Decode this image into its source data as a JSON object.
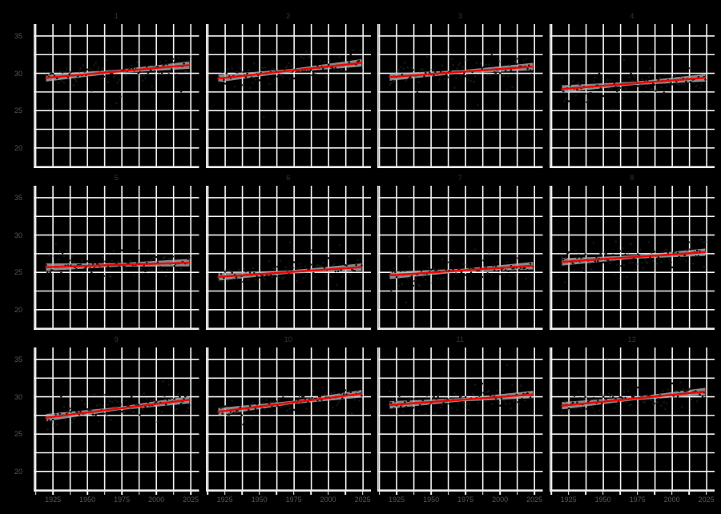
{
  "window": {
    "background_color": "#000000"
  },
  "chart_data": {
    "type": "scatter",
    "title": "",
    "layout": {
      "rows": 3,
      "cols": 4,
      "shared_axes": true,
      "grid": "on",
      "legend": "none"
    },
    "x": {
      "label": "",
      "tick_labels": [
        "1925",
        "1950",
        "1975",
        "2000",
        "2025"
      ],
      "ticks": [
        1925,
        1950,
        1975,
        2000,
        2025
      ],
      "gridline_step": 12.5,
      "gridline_start": 1912.5,
      "gridline_end": 2025,
      "lim": [
        1911,
        2031
      ]
    },
    "y": {
      "label": "",
      "tick_labels": [
        "20",
        "25",
        "30",
        "35"
      ],
      "ticks": [
        20,
        25,
        30,
        35
      ],
      "gridline_step": 2.5,
      "gridline_start": 17.5,
      "gridline_end": 35,
      "lim": [
        17.3,
        36.6
      ]
    },
    "facets": [
      {
        "title": "1",
        "regression": {
          "x": [
            1920,
            2024
          ],
          "y": [
            29.4,
            31.1
          ]
        },
        "ci_halfwidth": {
          "ends": 0.5,
          "middle": 0.22
        },
        "scatter": {
          "x_range": [
            1920,
            2024
          ],
          "points": 105,
          "spread_sd": 0.85,
          "outlier_rate": 0.06,
          "outlier_sd": 1.8,
          "seed": 1344
        }
      },
      {
        "title": "2",
        "regression": {
          "x": [
            1920,
            2024
          ],
          "y": [
            29.3,
            31.4
          ]
        },
        "ci_halfwidth": {
          "ends": 0.5,
          "middle": 0.22
        },
        "scatter": {
          "x_range": [
            1920,
            2024
          ],
          "points": 105,
          "spread_sd": 0.8,
          "outlier_rate": 0.06,
          "outlier_sd": 1.8,
          "seed": 2681
        }
      },
      {
        "title": "3",
        "regression": {
          "x": [
            1920,
            2024
          ],
          "y": [
            29.5,
            30.9
          ]
        },
        "ci_halfwidth": {
          "ends": 0.5,
          "middle": 0.22
        },
        "scatter": {
          "x_range": [
            1920,
            2024
          ],
          "points": 105,
          "spread_sd": 0.8,
          "outlier_rate": 0.07,
          "outlier_sd": 1.9,
          "seed": 4018
        }
      },
      {
        "title": "4",
        "regression": {
          "x": [
            1920,
            2024
          ],
          "y": [
            27.9,
            29.4
          ]
        },
        "ci_halfwidth": {
          "ends": 0.5,
          "middle": 0.22
        },
        "scatter": {
          "x_range": [
            1920,
            2024
          ],
          "points": 105,
          "spread_sd": 0.85,
          "outlier_rate": 0.06,
          "outlier_sd": 1.8,
          "seed": 5355
        }
      },
      {
        "title": "5",
        "regression": {
          "x": [
            1920,
            2024
          ],
          "y": [
            25.7,
            26.3
          ]
        },
        "ci_halfwidth": {
          "ends": 0.5,
          "middle": 0.24
        },
        "scatter": {
          "x_range": [
            1920,
            2024
          ],
          "points": 105,
          "spread_sd": 0.85,
          "outlier_rate": 0.07,
          "outlier_sd": 2.0,
          "seed": 6692
        }
      },
      {
        "title": "6",
        "regression": {
          "x": [
            1920,
            2024
          ],
          "y": [
            24.4,
            25.7
          ]
        },
        "ci_halfwidth": {
          "ends": 0.5,
          "middle": 0.22
        },
        "scatter": {
          "x_range": [
            1920,
            2024
          ],
          "points": 105,
          "spread_sd": 0.75,
          "outlier_rate": 0.06,
          "outlier_sd": 1.8,
          "seed": 8029
        }
      },
      {
        "title": "7",
        "regression": {
          "x": [
            1920,
            2024
          ],
          "y": [
            24.6,
            25.9
          ]
        },
        "ci_halfwidth": {
          "ends": 0.5,
          "middle": 0.22
        },
        "scatter": {
          "x_range": [
            1920,
            2024
          ],
          "points": 105,
          "spread_sd": 0.8,
          "outlier_rate": 0.06,
          "outlier_sd": 1.8,
          "seed": 9366
        }
      },
      {
        "title": "8",
        "regression": {
          "x": [
            1920,
            2024
          ],
          "y": [
            26.4,
            27.7
          ]
        },
        "ci_halfwidth": {
          "ends": 0.5,
          "middle": 0.22
        },
        "scatter": {
          "x_range": [
            1920,
            2024
          ],
          "points": 105,
          "spread_sd": 0.85,
          "outlier_rate": 0.07,
          "outlier_sd": 1.9,
          "seed": 10703
        }
      },
      {
        "title": "9",
        "regression": {
          "x": [
            1920,
            2024
          ],
          "y": [
            27.2,
            29.6
          ]
        },
        "ci_halfwidth": {
          "ends": 0.5,
          "middle": 0.22
        },
        "scatter": {
          "x_range": [
            1920,
            2024
          ],
          "points": 105,
          "spread_sd": 0.85,
          "outlier_rate": 0.08,
          "outlier_sd": 2.1,
          "seed": 12040
        }
      },
      {
        "title": "10",
        "regression": {
          "x": [
            1920,
            2024
          ],
          "y": [
            28.0,
            30.4
          ]
        },
        "ci_halfwidth": {
          "ends": 0.5,
          "middle": 0.22
        },
        "scatter": {
          "x_range": [
            1920,
            2024
          ],
          "points": 105,
          "spread_sd": 0.8,
          "outlier_rate": 0.06,
          "outlier_sd": 1.8,
          "seed": 13377
        }
      },
      {
        "title": "11",
        "regression": {
          "x": [
            1920,
            2024
          ],
          "y": [
            28.9,
            30.3
          ]
        },
        "ci_halfwidth": {
          "ends": 0.5,
          "middle": 0.22
        },
        "scatter": {
          "x_range": [
            1920,
            2024
          ],
          "points": 105,
          "spread_sd": 0.75,
          "outlier_rate": 0.06,
          "outlier_sd": 1.8,
          "seed": 14714
        }
      },
      {
        "title": "12",
        "regression": {
          "x": [
            1920,
            2024
          ],
          "y": [
            28.8,
            30.7
          ]
        },
        "ci_halfwidth": {
          "ends": 0.5,
          "middle": 0.22
        },
        "scatter": {
          "x_range": [
            1920,
            2024
          ],
          "points": 105,
          "spread_sd": 0.8,
          "outlier_rate": 0.06,
          "outlier_sd": 1.8,
          "seed": 16051
        }
      }
    ],
    "style": {
      "background_color": "#000000",
      "grid_color": "#f4f4f4",
      "axis_spine_color": "#eaeaea",
      "regression_line_color": "#ee0000",
      "confidence_band_color": "#ababab",
      "confidence_band_opacity": 0.8,
      "point_color": "#161616",
      "point_radius": 1.3,
      "tick_label_color": "#565656",
      "facet_title_color": "#333333"
    }
  }
}
